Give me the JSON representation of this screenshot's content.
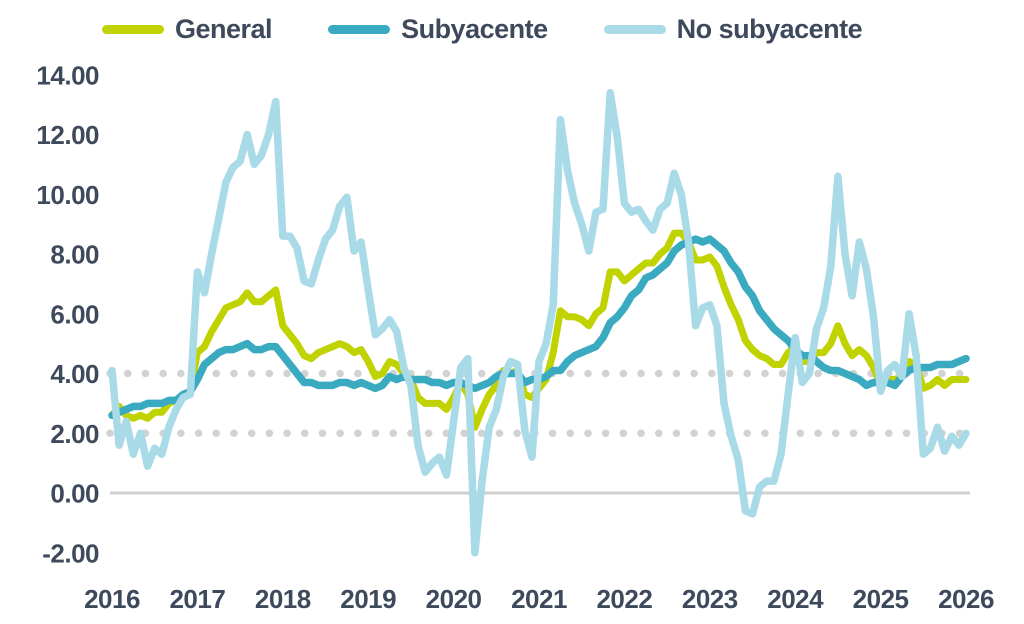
{
  "legend": {
    "items": [
      {
        "label": "General",
        "series_key": "general"
      },
      {
        "label": "Subyacente",
        "series_key": "subyacente"
      },
      {
        "label": "No subyacente",
        "series_key": "no_subyacente"
      }
    ]
  },
  "colors": {
    "general": "#c0d300",
    "subyacente": "#3aaac1",
    "no_subyacente": "#a9dae8",
    "axis_text": "#3e4a5c",
    "dotted_reference": "#d2d2d2",
    "zero_line": "#d0d0d0",
    "background": "#ffffff"
  },
  "chart_data": {
    "type": "line",
    "title": "",
    "xlabel": "",
    "ylabel": "",
    "legend_position": "top",
    "grid": false,
    "x_start": "2016-01",
    "x_end": "2026-01",
    "x_freq": "monthly",
    "ylim": [
      -2.6,
      14.0
    ],
    "y_ticks": [
      {
        "label": "14.00",
        "value": 14
      },
      {
        "label": "12.00",
        "value": 12
      },
      {
        "label": "10.00",
        "value": 10
      },
      {
        "label": "8.00",
        "value": 8
      },
      {
        "label": "6.00",
        "value": 6
      },
      {
        "label": "4.00",
        "value": 4
      },
      {
        "label": "2.00",
        "value": 2
      },
      {
        "label": "0.00",
        "value": 0
      },
      {
        "label": "-2.00",
        "value": -2
      }
    ],
    "x_ticks": [
      {
        "label": "2016",
        "month_index": 0
      },
      {
        "label": "2017",
        "month_index": 12
      },
      {
        "label": "2018",
        "month_index": 24
      },
      {
        "label": "2019",
        "month_index": 36
      },
      {
        "label": "2020",
        "month_index": 48
      },
      {
        "label": "2021",
        "month_index": 60
      },
      {
        "label": "2022",
        "month_index": 72
      },
      {
        "label": "2023",
        "month_index": 84
      },
      {
        "label": "2024",
        "month_index": 96
      },
      {
        "label": "2025",
        "month_index": 108
      },
      {
        "label": "2026",
        "month_index": 120
      }
    ],
    "reference_lines": [
      {
        "value": 4,
        "style": "dotted"
      },
      {
        "value": 2,
        "style": "dotted"
      },
      {
        "value": 0,
        "style": "solid"
      }
    ],
    "series": [
      {
        "name": "General",
        "key": "general",
        "color": "#c0d300",
        "stroke_width": 7,
        "values": [
          2.6,
          2.9,
          2.6,
          2.5,
          2.6,
          2.5,
          2.7,
          2.7,
          3.0,
          3.1,
          3.3,
          3.4,
          4.7,
          4.9,
          5.4,
          5.8,
          6.2,
          6.3,
          6.4,
          6.7,
          6.4,
          6.4,
          6.6,
          6.8,
          5.6,
          5.3,
          5.0,
          4.6,
          4.5,
          4.7,
          4.8,
          4.9,
          5.0,
          4.9,
          4.7,
          4.8,
          4.4,
          3.9,
          4.0,
          4.4,
          4.3,
          4.0,
          3.8,
          3.2,
          3.0,
          3.0,
          3.0,
          2.8,
          3.2,
          3.7,
          3.3,
          2.2,
          2.8,
          3.3,
          3.6,
          4.1,
          4.0,
          4.1,
          3.3,
          3.2,
          3.5,
          3.8,
          4.7,
          6.1,
          5.9,
          5.9,
          5.8,
          5.6,
          6.0,
          6.2,
          7.4,
          7.4,
          7.1,
          7.3,
          7.5,
          7.7,
          7.7,
          8.0,
          8.2,
          8.7,
          8.7,
          8.4,
          7.8,
          7.8,
          7.9,
          7.6,
          6.9,
          6.3,
          5.8,
          5.1,
          4.8,
          4.6,
          4.5,
          4.3,
          4.3,
          4.7,
          4.9,
          4.4,
          4.4,
          4.7,
          4.7,
          5.0,
          5.6,
          5.0,
          4.6,
          4.8,
          4.6,
          4.2,
          3.6,
          3.8,
          3.8,
          3.9,
          4.4,
          4.3,
          3.5,
          3.6,
          3.8,
          3.6,
          3.8,
          3.8,
          3.8
        ]
      },
      {
        "name": "Subyacente",
        "key": "subyacente",
        "color": "#3aaac1",
        "stroke_width": 7.5,
        "values": [
          2.6,
          2.7,
          2.8,
          2.9,
          2.9,
          3.0,
          3.0,
          3.0,
          3.1,
          3.1,
          3.3,
          3.4,
          3.8,
          4.3,
          4.5,
          4.7,
          4.8,
          4.8,
          4.9,
          5.0,
          4.8,
          4.8,
          4.9,
          4.9,
          4.6,
          4.3,
          4.0,
          3.7,
          3.7,
          3.6,
          3.6,
          3.6,
          3.7,
          3.7,
          3.6,
          3.7,
          3.6,
          3.5,
          3.6,
          3.9,
          3.8,
          3.9,
          3.8,
          3.8,
          3.8,
          3.7,
          3.7,
          3.6,
          3.7,
          3.7,
          3.6,
          3.5,
          3.6,
          3.7,
          3.9,
          4.0,
          4.0,
          4.0,
          3.7,
          3.8,
          3.8,
          3.9,
          4.1,
          4.1,
          4.4,
          4.6,
          4.7,
          4.8,
          4.9,
          5.2,
          5.7,
          5.9,
          6.2,
          6.6,
          6.8,
          7.2,
          7.3,
          7.5,
          7.7,
          8.1,
          8.3,
          8.4,
          8.5,
          8.4,
          8.5,
          8.3,
          8.1,
          7.7,
          7.4,
          6.9,
          6.6,
          6.1,
          5.8,
          5.5,
          5.3,
          5.1,
          4.8,
          4.6,
          4.6,
          4.4,
          4.2,
          4.1,
          4.1,
          4.0,
          3.9,
          3.8,
          3.6,
          3.7,
          3.7,
          3.7,
          3.6,
          3.9,
          4.1,
          4.2,
          4.2,
          4.2,
          4.3,
          4.3,
          4.3,
          4.4,
          4.5
        ]
      },
      {
        "name": "No subyacente",
        "key": "no_subyacente",
        "color": "#a9dae8",
        "stroke_width": 7.5,
        "values": [
          4.1,
          1.6,
          2.4,
          1.3,
          2.0,
          0.9,
          1.5,
          1.3,
          2.2,
          2.8,
          3.2,
          3.3,
          7.4,
          6.7,
          8.0,
          9.2,
          10.4,
          10.9,
          11.1,
          12.0,
          11.0,
          11.3,
          12.0,
          13.1,
          8.6,
          8.6,
          8.2,
          7.1,
          7.0,
          7.8,
          8.5,
          8.8,
          9.6,
          9.9,
          8.1,
          8.4,
          6.8,
          5.3,
          5.5,
          5.8,
          5.4,
          4.2,
          3.6,
          1.6,
          0.7,
          1.0,
          1.2,
          0.6,
          2.4,
          4.2,
          4.5,
          -2.0,
          0.4,
          2.2,
          2.8,
          3.9,
          4.4,
          4.3,
          2.1,
          1.2,
          4.4,
          5.0,
          6.3,
          12.5,
          10.8,
          9.7,
          9.0,
          8.1,
          9.4,
          9.5,
          13.4,
          11.9,
          9.7,
          9.4,
          9.5,
          9.1,
          8.8,
          9.5,
          9.7,
          10.7,
          10.0,
          8.4,
          5.6,
          6.2,
          6.3,
          5.6,
          3.0,
          1.9,
          1.1,
          -0.6,
          -0.7,
          0.2,
          0.4,
          0.4,
          1.3,
          3.3,
          5.2,
          3.7,
          4.0,
          5.5,
          6.2,
          7.6,
          10.6,
          8.0,
          6.6,
          8.4,
          7.5,
          5.9,
          3.4,
          4.1,
          4.3,
          3.9,
          6.0,
          4.6,
          1.3,
          1.5,
          2.2,
          1.4,
          1.9,
          1.6,
          2.0
        ]
      }
    ]
  }
}
